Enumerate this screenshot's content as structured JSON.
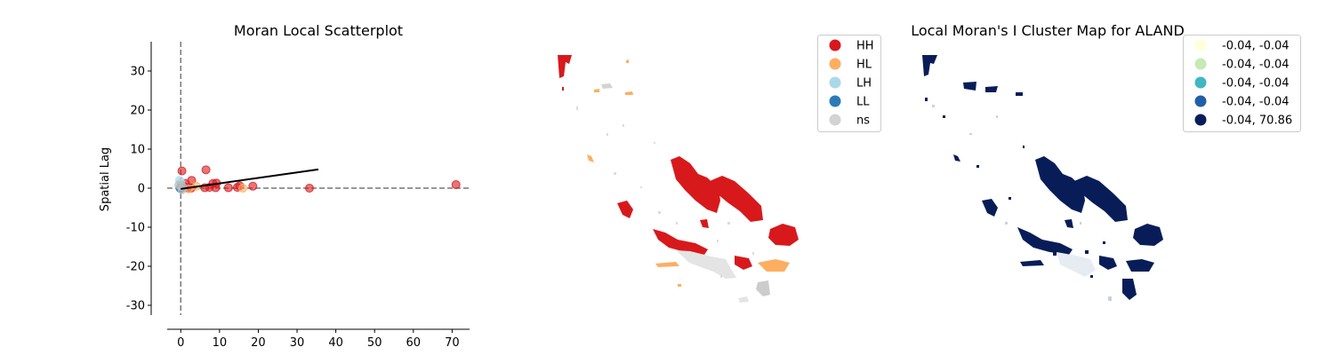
{
  "chart_data": [
    {
      "type": "scatter",
      "title": "Moran Local Scatterplot",
      "xlabel": "",
      "ylabel": "Spatial Lag",
      "xlim": [
        -3.5,
        74.5
      ],
      "ylim": [
        -32.5,
        37.5
      ],
      "xticks": [
        0,
        10,
        20,
        30,
        40,
        50,
        60,
        70
      ],
      "yticks": [
        -30,
        -20,
        -10,
        0,
        10,
        20,
        30
      ],
      "reference_lines": {
        "x": 0,
        "y": 0,
        "style": "dashed",
        "color": "#777777"
      },
      "fit_line": {
        "x": [
          0,
          35.5
        ],
        "y": [
          -0.2,
          4.8
        ],
        "color": "#000000"
      },
      "series": [
        {
          "quadrant": "HH",
          "color": "#d7191c",
          "points": [
            [
              0.3,
              4.4
            ],
            [
              6.5,
              4.7
            ],
            [
              2.8,
              2.0
            ],
            [
              1.2,
              1.2
            ],
            [
              0.6,
              0.6
            ],
            [
              1.6,
              0.1
            ],
            [
              2.7,
              0.0
            ],
            [
              6.2,
              0.1
            ],
            [
              7.4,
              0.2
            ],
            [
              8.3,
              1.2
            ],
            [
              9.2,
              1.3
            ],
            [
              9.0,
              0.1
            ],
            [
              12.3,
              0.1
            ],
            [
              14.6,
              0.2
            ],
            [
              15.2,
              0.6
            ],
            [
              18.6,
              0.5
            ],
            [
              33.2,
              0.0
            ],
            [
              71.0,
              0.9
            ]
          ]
        },
        {
          "quadrant": "HL",
          "color": "#fdae61",
          "points": [
            [
              16.0,
              0.0
            ],
            [
              4.0,
              0.5
            ],
            [
              2.0,
              -0.2
            ]
          ]
        },
        {
          "quadrant": "LH",
          "color": "#abd9e9",
          "points": [
            [
              0.0,
              1.5
            ],
            [
              -0.3,
              2.0
            ]
          ]
        },
        {
          "quadrant": "LL",
          "color": "#2c7bb6",
          "points": [
            [
              0.0,
              -0.1
            ],
            [
              0.2,
              0.1
            ],
            [
              -0.2,
              0.0
            ]
          ]
        },
        {
          "quadrant": "ns",
          "color": "#bababa",
          "points": [
            [
              0.0,
              0.5
            ],
            [
              0.5,
              0.3
            ],
            [
              -0.5,
              0.8
            ],
            [
              0.3,
              -0.4
            ]
          ]
        }
      ]
    },
    {
      "type": "choropleth",
      "title": "",
      "legend": {
        "placement": "top-right",
        "items": [
          {
            "label": "HH",
            "color": "#d7191c"
          },
          {
            "label": "HL",
            "color": "#fdae61"
          },
          {
            "label": "LH",
            "color": "#abd9e9"
          },
          {
            "label": "LL",
            "color": "#2c7bb6"
          },
          {
            "label": "ns",
            "color": "#d3d3d3"
          }
        ]
      }
    },
    {
      "type": "choropleth",
      "title": "Local Moran's I Cluster Map for ALAND",
      "legend": {
        "placement": "top-right",
        "items": [
          {
            "label": "-0.04, -0.04",
            "color": "#ffffd9"
          },
          {
            "label": "-0.04, -0.04",
            "color": "#c7e9b4"
          },
          {
            "label": "-0.04, -0.04",
            "color": "#41b6c4"
          },
          {
            "label": "-0.04, -0.04",
            "color": "#225ea8"
          },
          {
            "label": "-0.04, 70.86",
            "color": "#081d58"
          }
        ]
      }
    }
  ]
}
